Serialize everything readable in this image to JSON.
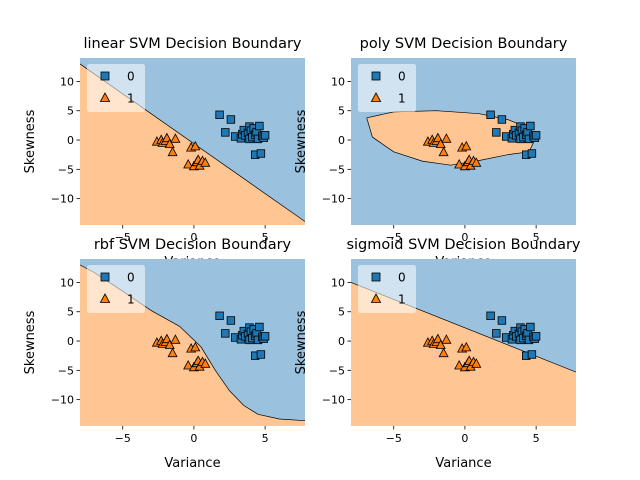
{
  "chart_data": [
    {
      "type": "scatter",
      "title": "linear SVM Decision Boundary",
      "kernel": "linear",
      "xlabel": "Variance",
      "ylabel": "Skewness",
      "xlim": [
        -8,
        7.8
      ],
      "ylim": [
        -14.5,
        14
      ],
      "xticks": [
        -5,
        0,
        5
      ],
      "yticks": [
        -10,
        -5,
        0,
        5,
        10
      ],
      "boundary": [
        [
          -8,
          13
        ],
        [
          7.8,
          -13.9
        ]
      ],
      "legend_position": "top-left"
    },
    {
      "type": "scatter",
      "title": "poly SVM Decision Boundary",
      "kernel": "poly",
      "xlabel": "Variance",
      "ylabel": "Skewness",
      "xlim": [
        -8,
        7.8
      ],
      "ylim": [
        -14.5,
        14
      ],
      "xticks": [
        -5,
        0,
        5
      ],
      "yticks": [
        -10,
        -5,
        0,
        5,
        10
      ],
      "boundary": [
        [
          -6.9,
          3.8
        ],
        [
          -5,
          4.8
        ],
        [
          -2,
          5.0
        ],
        [
          1,
          4.5
        ],
        [
          3,
          3.5
        ],
        [
          4.5,
          2.0
        ],
        [
          5,
          0.5
        ],
        [
          4.5,
          -2.0
        ],
        [
          3,
          -2.5
        ],
        [
          1,
          -3.5
        ],
        [
          -1,
          -4.3
        ],
        [
          -3,
          -3.6
        ],
        [
          -5,
          -2.0
        ],
        [
          -6.5,
          0.5
        ],
        [
          -6.9,
          3.8
        ]
      ],
      "legend_position": "top-left"
    },
    {
      "type": "scatter",
      "title": "rbf SVM Decision Boundary",
      "kernel": "rbf",
      "xlabel": "Variance",
      "ylabel": "Skewness",
      "xlim": [
        -8,
        7.8
      ],
      "ylim": [
        -14.5,
        14
      ],
      "xticks": [
        -5,
        0,
        5
      ],
      "yticks": [
        -10,
        -5,
        0,
        5,
        10
      ],
      "boundary": [
        [
          -8,
          13
        ],
        [
          -7,
          11.7
        ],
        [
          -5,
          8.5
        ],
        [
          -3,
          5.2
        ],
        [
          -1,
          2.5
        ],
        [
          0.5,
          -1.0
        ],
        [
          1.5,
          -5.0
        ],
        [
          2.5,
          -8.5
        ],
        [
          3.5,
          -11.0
        ],
        [
          4.5,
          -12.5
        ],
        [
          6,
          -13.3
        ],
        [
          7.8,
          -13.6
        ]
      ],
      "legend_position": "top-left"
    },
    {
      "type": "scatter",
      "title": "sigmoid SVM Decision Boundary",
      "kernel": "sigmoid",
      "xlabel": "Variance",
      "ylabel": "Skewness",
      "xlim": [
        -8,
        7.8
      ],
      "ylim": [
        -14.5,
        14
      ],
      "xticks": [
        -5,
        0,
        5
      ],
      "yticks": [
        -10,
        -5,
        0,
        5,
        10
      ],
      "boundary": [
        [
          -8,
          10
        ],
        [
          7.8,
          -5.3
        ]
      ],
      "legend_position": "top-left"
    }
  ],
  "shared": {
    "legend": [
      {
        "label": "0",
        "marker": "square",
        "color": "#1f77b4"
      },
      {
        "label": "1",
        "marker": "triangle",
        "color": "#ff7f0e"
      }
    ],
    "region_colors": {
      "class0": "#9ac2de",
      "class1": "#ffc592"
    },
    "class0_points": [
      [
        1.8,
        4.3
      ],
      [
        2.2,
        1.3
      ],
      [
        2.6,
        3.5
      ],
      [
        2.9,
        0.6
      ],
      [
        3.3,
        0.3
      ],
      [
        3.4,
        1.0
      ],
      [
        3.5,
        1.7
      ],
      [
        3.6,
        0.8
      ],
      [
        3.8,
        1.2
      ],
      [
        3.9,
        0.2
      ],
      [
        3.9,
        2.3
      ],
      [
        4.0,
        1.6
      ],
      [
        4.1,
        0.5
      ],
      [
        4.2,
        2.0
      ],
      [
        4.3,
        -2.5
      ],
      [
        4.3,
        0.9
      ],
      [
        4.4,
        1.3
      ],
      [
        4.5,
        0.2
      ],
      [
        4.6,
        2.4
      ],
      [
        4.7,
        -2.3
      ],
      [
        4.8,
        0.7
      ],
      [
        4.9,
        0.4
      ],
      [
        5.0,
        0.8
      ]
    ],
    "class1_points": [
      [
        -2.6,
        -0.3
      ],
      [
        -2.3,
        0.0
      ],
      [
        -2.2,
        -0.5
      ],
      [
        -2.0,
        -0.2
      ],
      [
        -1.9,
        0.3
      ],
      [
        -1.7,
        -0.7
      ],
      [
        -1.5,
        -2.1
      ],
      [
        -1.3,
        0.2
      ],
      [
        -0.2,
        -1.3
      ],
      [
        -0.4,
        -4.2
      ],
      [
        0.0,
        -4.5
      ],
      [
        0.1,
        -1.1
      ],
      [
        0.2,
        -3.8
      ],
      [
        0.3,
        -3.4
      ],
      [
        0.4,
        -4.4
      ],
      [
        0.6,
        -3.6
      ],
      [
        0.8,
        -3.9
      ]
    ]
  }
}
